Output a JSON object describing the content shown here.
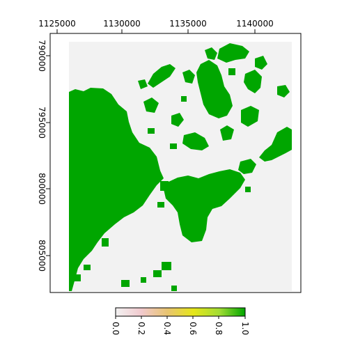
{
  "x_axis": {
    "ticks": [
      "1125000",
      "1130000",
      "1135000",
      "1140000"
    ]
  },
  "y_axis": {
    "ticks": [
      "790000",
      "795000",
      "800000",
      "805000"
    ]
  },
  "legend": {
    "ticks": [
      "0.0",
      "0.2",
      "0.4",
      "0.6",
      "0.8",
      "1.0"
    ],
    "colors": [
      "#f2f2f2",
      "#f1c9cd",
      "#e8c470",
      "#e6e61a",
      "#a3dd34",
      "#00a600"
    ]
  },
  "map_colors": {
    "background": "#f2f2f2",
    "forest": "#00a600"
  }
}
